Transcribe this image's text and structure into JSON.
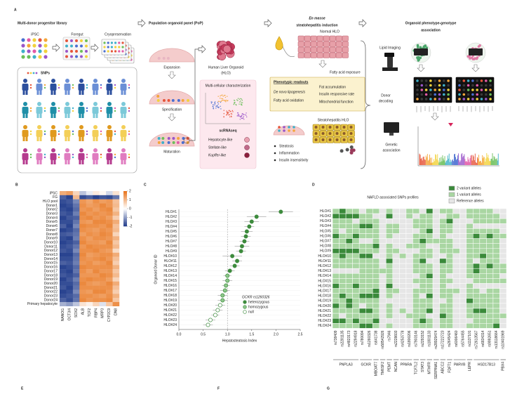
{
  "panel_letters": [
    "A",
    "B",
    "C",
    "D",
    "E",
    "F",
    "G"
  ],
  "panel_a": {
    "library": {
      "title": "Multi-donor progenitor library",
      "ipsc": "iPSC",
      "foregut": "Foregut",
      "cryo": "Cryopreservation",
      "snps": "SNPs"
    },
    "pop": {
      "title": "Population organoid panel (PoP)",
      "stages": [
        "Expansion",
        "Specification",
        "Maturation"
      ],
      "hlo": "Human Liver Organoid",
      "hlo_abbr": "(HLO)",
      "characterization": "Multi-cellular characterization",
      "method": "scRNAseq",
      "cell_types": [
        "Hepatocyte-like",
        "Stellate-like",
        "Kupffer-like"
      ]
    },
    "induction": {
      "title_em": "En masse",
      "title": "steatohepatitis induction",
      "normal": "Normal HLO",
      "exposure": "Fatty acid exposure",
      "readouts_title": "Phenotypic readouts",
      "readouts": [
        "De novo lipogenesis",
        "Fatty acid oxidation",
        "Fat accumulation",
        "Insulin responsive rate",
        "Mitochondrial function"
      ],
      "result": "Steatohepatitis HLO",
      "features": [
        "Steatosis",
        "Inflammation",
        "Insulin insensitivity"
      ]
    },
    "association": {
      "title": "Organoid phenotype-genotype",
      "title2": "association",
      "imaging": "Lipid Imaging",
      "high": "High",
      "low": "Low",
      "decoding": [
        "Donor",
        "decoding"
      ],
      "genetic": [
        "Genetic",
        "association"
      ]
    }
  },
  "panel_b": {
    "type": "heatmap",
    "rows": [
      "iPSC",
      "FG",
      "HLO pool",
      "Donor1",
      "Donor2",
      "Donor3",
      "Donor4",
      "Donor5",
      "Donor6",
      "Donor7",
      "Donor8",
      "Donor9",
      "Donor10",
      "Donor11",
      "Donor12",
      "Donor13",
      "Donor14",
      "Donor15",
      "Donor16",
      "Donor17",
      "Donor18",
      "Donor19",
      "Donor20",
      "Donor21",
      "Donor22",
      "Donor23",
      "Donor24",
      "Primary hepatocyte"
    ],
    "columns": [
      "NANOG",
      "OCT3/4",
      "SOX2",
      "ALB",
      "TCF2",
      "RBP4",
      "MRP3",
      "CYP2C9",
      "DN8"
    ],
    "color_range": [
      -2,
      2
    ],
    "scale_ticks": [
      2,
      1,
      0,
      -1,
      -2
    ],
    "colors": [
      "#1f3a8a",
      "#ffffff",
      "#e8741c"
    ],
    "values": [
      [
        1.2,
        1.4,
        0.6,
        -0.6,
        -0.2,
        0.3,
        0.1,
        -0.4,
        0.4
      ],
      [
        -1.6,
        -1.9,
        1.0,
        -1.8,
        -1.6,
        -1.9,
        -1.7,
        -1.8,
        -1.4
      ],
      [
        -1.8,
        -1.7,
        -1.2,
        1.5,
        1.3,
        1.6,
        1.4,
        1.5,
        0.9
      ],
      [
        -1.9,
        -1.8,
        -1.4,
        1.6,
        1.4,
        1.5,
        1.7,
        1.5,
        1.0
      ],
      [
        -1.8,
        -1.9,
        -1.5,
        1.5,
        1.6,
        1.4,
        1.6,
        1.7,
        0.8
      ],
      [
        -1.7,
        -1.8,
        -1.3,
        1.7,
        1.5,
        1.6,
        1.5,
        1.6,
        1.1
      ],
      [
        -1.9,
        -1.7,
        -1.6,
        1.6,
        1.7,
        1.5,
        1.6,
        1.4,
        0.7
      ],
      [
        -1.8,
        -1.8,
        -1.4,
        1.5,
        1.4,
        1.7,
        1.7,
        1.6,
        1.2
      ],
      [
        -1.6,
        -1.9,
        -1.2,
        1.7,
        1.6,
        1.6,
        1.5,
        1.7,
        0.9
      ],
      [
        -1.9,
        -1.8,
        -1.5,
        1.6,
        1.5,
        1.4,
        1.6,
        1.5,
        1.0
      ],
      [
        -1.7,
        -1.6,
        -1.4,
        1.4,
        1.6,
        1.5,
        1.7,
        1.6,
        0.6
      ],
      [
        -1.8,
        -1.9,
        -1.3,
        1.6,
        1.4,
        1.6,
        1.6,
        1.5,
        1.1
      ],
      [
        -1.9,
        -1.8,
        -1.6,
        1.7,
        1.5,
        1.5,
        1.4,
        1.7,
        0.8
      ],
      [
        -1.8,
        -1.7,
        -1.4,
        1.5,
        1.7,
        1.6,
        1.6,
        1.6,
        1.0
      ],
      [
        -1.7,
        -1.8,
        -1.2,
        1.6,
        1.6,
        1.7,
        1.5,
        1.4,
        0.5
      ],
      [
        -1.9,
        -1.9,
        -1.5,
        1.7,
        1.4,
        1.5,
        1.6,
        1.6,
        1.2
      ],
      [
        -1.8,
        -1.8,
        -1.4,
        1.6,
        1.5,
        1.6,
        1.7,
        1.5,
        0.9
      ],
      [
        -1.6,
        -1.7,
        -1.3,
        1.5,
        1.6,
        1.4,
        1.5,
        1.7,
        0.7
      ],
      [
        -1.9,
        -1.8,
        -1.5,
        1.7,
        1.6,
        1.6,
        1.6,
        1.6,
        1.1
      ],
      [
        -1.8,
        -1.9,
        -1.4,
        1.6,
        1.4,
        1.7,
        1.5,
        1.5,
        0.8
      ],
      [
        -1.7,
        -1.8,
        -1.6,
        1.5,
        1.5,
        1.5,
        1.7,
        1.6,
        1.0
      ],
      [
        -1.9,
        -1.7,
        -1.3,
        1.6,
        1.7,
        1.6,
        1.6,
        1.4,
        0.6
      ],
      [
        -1.8,
        -1.8,
        -1.5,
        1.7,
        1.5,
        1.4,
        1.5,
        1.7,
        1.2
      ],
      [
        -1.7,
        -1.9,
        -1.4,
        1.6,
        1.6,
        1.6,
        1.6,
        1.6,
        0.9
      ],
      [
        -1.9,
        -1.8,
        -1.2,
        1.5,
        1.4,
        1.7,
        1.7,
        1.5,
        0.7
      ],
      [
        -1.8,
        -1.7,
        -1.5,
        1.6,
        1.6,
        1.5,
        1.4,
        1.6,
        1.1
      ],
      [
        -1.6,
        -1.8,
        -1.4,
        1.7,
        1.5,
        1.6,
        1.6,
        1.7,
        0.8
      ],
      [
        -0.8,
        -1.0,
        -0.6,
        0.4,
        0.2,
        0.6,
        -0.3,
        0.8,
        1.6
      ]
    ]
  },
  "chart_data": {
    "type": "dot",
    "ylabel": "Organoid Donor ID",
    "xlabel": "Hepatosteatosis Index",
    "categories": [
      "HLO#1",
      "HLO#2",
      "HLO#3",
      "HLO#4",
      "HLO#5",
      "HLO#6",
      "HLO#7",
      "HLO#8",
      "HLO#9",
      "HLO#10",
      "HLO#11",
      "HLO#12",
      "HLO#13",
      "HLO#14",
      "HLO#15",
      "HLO#16",
      "HLO#17",
      "HLO#18",
      "HLO#19",
      "HLO#20",
      "HLO#21",
      "HLO#22",
      "HLO#23",
      "HLO#24"
    ],
    "xlim": [
      0,
      2.5
    ],
    "xticks": [
      {
        "value": 0,
        "label": "0.0"
      },
      0.5,
      {
        "value": 1,
        "label": "1.0"
      },
      1.5,
      {
        "value": 2,
        "label": "2.0"
      },
      2.5
    ],
    "reference_line": 1,
    "legend_title": "GCKR rs1260326",
    "marker_edge": "#3d8b3d",
    "series": [
      {
        "name": "heterozygous",
        "color": "#3d8b3d",
        "values": [
          2.1,
          1.6,
          1.5,
          1.45,
          1.4,
          1.38,
          1.35,
          1.3,
          1.28,
          1.1,
          1.2,
          1.15,
          1.05,
          null,
          null,
          null,
          null,
          null,
          null,
          null,
          null,
          null,
          null,
          null
        ],
        "errors": [
          0.25,
          0.2,
          0.15,
          0.1,
          0.12,
          0.1,
          0.1,
          0.15,
          0.1,
          0.2,
          0.1,
          0.1,
          0.1,
          null,
          null,
          null,
          null,
          null,
          null,
          null,
          null,
          null,
          null,
          null
        ]
      },
      {
        "name": "homozygous",
        "color": "#8cc68a",
        "values": [
          null,
          null,
          null,
          null,
          null,
          null,
          null,
          null,
          null,
          null,
          null,
          null,
          null,
          1.0,
          1.0,
          0.97,
          0.95,
          0.9,
          0.9,
          null,
          null,
          null,
          null,
          null
        ],
        "errors": [
          null,
          null,
          null,
          null,
          null,
          null,
          null,
          null,
          null,
          null,
          null,
          null,
          null,
          0.08,
          0.1,
          0.08,
          0.1,
          0.1,
          0.1,
          null,
          null,
          null,
          null,
          null
        ]
      },
      {
        "name": "null",
        "color": "#ffffff",
        "values": [
          null,
          null,
          null,
          null,
          null,
          null,
          null,
          null,
          null,
          null,
          null,
          null,
          null,
          null,
          null,
          null,
          null,
          null,
          null,
          0.85,
          0.8,
          0.75,
          0.65,
          0.6
        ],
        "errors": [
          null,
          null,
          null,
          null,
          null,
          null,
          null,
          null,
          null,
          null,
          null,
          null,
          null,
          null,
          null,
          null,
          null,
          null,
          null,
          0.1,
          0.1,
          0.08,
          0.1,
          0.1
        ]
      }
    ]
  },
  "panel_d": {
    "type": "heatmap",
    "title": "NAFLD associated SNPs profiles",
    "legend": [
      "2 variant alleles",
      "1 variant alleles",
      "Reference alleles"
    ],
    "levels": [
      2,
      1,
      0
    ],
    "colors": [
      "#3a8a3a",
      "#a9d6a2",
      "#e6e6e6"
    ],
    "rows": [
      "HLO#1",
      "HLO#2",
      "HLO#3",
      "HLO#4",
      "HLO#5",
      "HLO#6",
      "HLO#7",
      "HLO#8",
      "HLO#9",
      "HLO#10",
      "HLO#11",
      "HLO#12",
      "HLO#13",
      "HLO#14",
      "HLO#15",
      "HLO#16",
      "HLO#17",
      "HLO#18",
      "HLO#19",
      "HLO#20",
      "HLO#21",
      "HLO#22",
      "HLO#23",
      "HLO#24"
    ],
    "columns": [
      {
        "snp": "rs738409",
        "gene": "PNPLA3"
      },
      {
        "snp": "rs2281135",
        "gene": "PNPLA3"
      },
      {
        "snp": "rs4823173",
        "gene": "PNPLA3"
      },
      {
        "snp": "rs2294918",
        "gene": "PNPLA3"
      },
      {
        "snp": "rs780094",
        "gene": "GCKR"
      },
      {
        "snp": "rs1260326",
        "gene": "GCKR"
      },
      {
        "snp": "rs641738",
        "gene": "MBOAT7"
      },
      {
        "snp": "rs58542926",
        "gene": "TM6SF2"
      },
      {
        "snp": "rs7946",
        "gene": "PEMT"
      },
      {
        "snp": "rs2228603",
        "gene": "NCAN"
      },
      {
        "snp": "rs4253778",
        "gene": "PPARA"
      },
      {
        "snp": "rs1800206",
        "gene": "PPARA"
      },
      {
        "snp": "rs7903146",
        "gene": "TCF7L2"
      },
      {
        "snp": "rs2293152",
        "gene": "STAT3"
      },
      {
        "snp": "rs1801133",
        "gene": "MTHFR"
      },
      {
        "snp": "rs28929474",
        "gene": "SERPINA1"
      },
      {
        "snp": "rs17222723",
        "gene": "ABCC2"
      },
      {
        "snp": "rs2645424",
        "gene": "FDFT1"
      },
      {
        "snp": "rs6006460",
        "gene": "PARVB"
      },
      {
        "snp": "rs5764455",
        "gene": "PARVB"
      },
      {
        "snp": "rs1137101",
        "gene": "LEPR"
      },
      {
        "snp": "rs72613567",
        "gene": "HSD17B13"
      },
      {
        "snp": "rs6834314",
        "gene": "HSD17B13"
      },
      {
        "snp": "rs9992651",
        "gene": "HSD17B13"
      },
      {
        "snp": "rs13118664",
        "gene": "HSD17B13"
      },
      {
        "snp": "rs10401969",
        "gene": "PBX4"
      }
    ],
    "values": [
      [
        1,
        2,
        1,
        1,
        0,
        1,
        1,
        0,
        1,
        0,
        0,
        1,
        1,
        0,
        2,
        0,
        1,
        1,
        0,
        0,
        1,
        1,
        1,
        1,
        0,
        0
      ],
      [
        2,
        2,
        2,
        2,
        1,
        1,
        0,
        0,
        2,
        0,
        0,
        1,
        0,
        1,
        1,
        0,
        0,
        1,
        1,
        0,
        1,
        1,
        1,
        1,
        1,
        0
      ],
      [
        1,
        1,
        1,
        0,
        1,
        1,
        1,
        0,
        0,
        0,
        0,
        0,
        1,
        1,
        1,
        0,
        1,
        2,
        0,
        0,
        0,
        1,
        1,
        1,
        1,
        1
      ],
      [
        1,
        1,
        1,
        1,
        2,
        2,
        1,
        0,
        1,
        1,
        0,
        0,
        1,
        1,
        1,
        0,
        1,
        1,
        0,
        0,
        1,
        0,
        0,
        0,
        0,
        0
      ],
      [
        1,
        0,
        1,
        1,
        1,
        1,
        1,
        0,
        1,
        1,
        0,
        0,
        0,
        1,
        2,
        0,
        1,
        1,
        0,
        0,
        1,
        1,
        1,
        1,
        1,
        0
      ],
      [
        2,
        1,
        1,
        2,
        1,
        1,
        1,
        0,
        1,
        0,
        0,
        0,
        1,
        1,
        1,
        0,
        1,
        0,
        0,
        0,
        1,
        2,
        1,
        2,
        1,
        1
      ],
      [
        1,
        1,
        2,
        1,
        0,
        0,
        1,
        0,
        0,
        0,
        0,
        0,
        1,
        2,
        1,
        1,
        1,
        1,
        0,
        0,
        1,
        1,
        1,
        1,
        1,
        0
      ],
      [
        1,
        1,
        1,
        1,
        1,
        1,
        2,
        0,
        1,
        0,
        0,
        1,
        1,
        1,
        0,
        0,
        1,
        1,
        0,
        0,
        1,
        1,
        1,
        1,
        1,
        0
      ],
      [
        2,
        2,
        2,
        2,
        1,
        1,
        1,
        0,
        1,
        1,
        0,
        0,
        0,
        1,
        1,
        0,
        1,
        1,
        1,
        0,
        1,
        1,
        1,
        1,
        1,
        0
      ],
      [
        1,
        2,
        1,
        1,
        2,
        2,
        0,
        0,
        1,
        0,
        1,
        0,
        1,
        1,
        1,
        0,
        0,
        1,
        0,
        0,
        1,
        1,
        2,
        1,
        1,
        0
      ],
      [
        1,
        1,
        1,
        1,
        1,
        1,
        1,
        0,
        2,
        0,
        0,
        0,
        1,
        2,
        0,
        0,
        2,
        1,
        0,
        0,
        1,
        0,
        1,
        1,
        1,
        0
      ],
      [
        1,
        1,
        1,
        1,
        1,
        1,
        1,
        0,
        1,
        0,
        0,
        0,
        1,
        1,
        1,
        0,
        1,
        1,
        0,
        0,
        1,
        2,
        1,
        2,
        1,
        1
      ],
      [
        0,
        0,
        0,
        0,
        1,
        1,
        1,
        1,
        1,
        0,
        0,
        0,
        1,
        1,
        1,
        0,
        1,
        1,
        0,
        0,
        1,
        2,
        1,
        1,
        1,
        1
      ],
      [
        1,
        1,
        1,
        1,
        1,
        1,
        1,
        0,
        1,
        0,
        0,
        0,
        0,
        1,
        2,
        0,
        1,
        0,
        0,
        0,
        1,
        1,
        1,
        1,
        1,
        0
      ],
      [
        1,
        1,
        1,
        1,
        1,
        1,
        1,
        0,
        1,
        0,
        0,
        0,
        1,
        1,
        1,
        0,
        1,
        1,
        0,
        0,
        0,
        1,
        1,
        1,
        1,
        1
      ],
      [
        2,
        1,
        1,
        2,
        1,
        1,
        1,
        0,
        2,
        0,
        0,
        0,
        0,
        1,
        1,
        0,
        1,
        0,
        0,
        0,
        1,
        0,
        0,
        0,
        0,
        0
      ],
      [
        1,
        1,
        1,
        1,
        1,
        1,
        2,
        0,
        1,
        1,
        0,
        0,
        1,
        1,
        1,
        0,
        1,
        1,
        1,
        0,
        1,
        1,
        0,
        1,
        1,
        0
      ],
      [
        1,
        2,
        1,
        1,
        2,
        2,
        2,
        0,
        1,
        0,
        0,
        0,
        1,
        0,
        2,
        0,
        1,
        1,
        0,
        0,
        1,
        1,
        1,
        1,
        1,
        0
      ],
      [
        1,
        1,
        2,
        1,
        1,
        1,
        1,
        0,
        0,
        0,
        0,
        0,
        1,
        1,
        1,
        0,
        0,
        1,
        0,
        0,
        2,
        1,
        1,
        1,
        1,
        0
      ],
      [
        2,
        1,
        2,
        1,
        0,
        1,
        1,
        0,
        1,
        0,
        0,
        0,
        1,
        1,
        1,
        0,
        1,
        1,
        0,
        0,
        1,
        1,
        1,
        1,
        1,
        0
      ],
      [
        1,
        1,
        1,
        1,
        2,
        2,
        1,
        0,
        1,
        0,
        1,
        0,
        1,
        1,
        2,
        0,
        1,
        1,
        0,
        0,
        1,
        2,
        2,
        1,
        1,
        0
      ],
      [
        1,
        0,
        1,
        1,
        1,
        1,
        1,
        0,
        1,
        0,
        0,
        1,
        1,
        1,
        0,
        0,
        2,
        1,
        0,
        0,
        1,
        1,
        1,
        1,
        1,
        1
      ],
      [
        2,
        2,
        1,
        2,
        1,
        1,
        2,
        0,
        0,
        0,
        0,
        0,
        1,
        2,
        1,
        0,
        1,
        1,
        0,
        0,
        0,
        1,
        1,
        1,
        1,
        0
      ],
      [
        1,
        1,
        1,
        1,
        2,
        2,
        1,
        0,
        1,
        0,
        0,
        0,
        1,
        1,
        1,
        0,
        1,
        1,
        0,
        0,
        1,
        1,
        1,
        1,
        2,
        0
      ]
    ]
  }
}
